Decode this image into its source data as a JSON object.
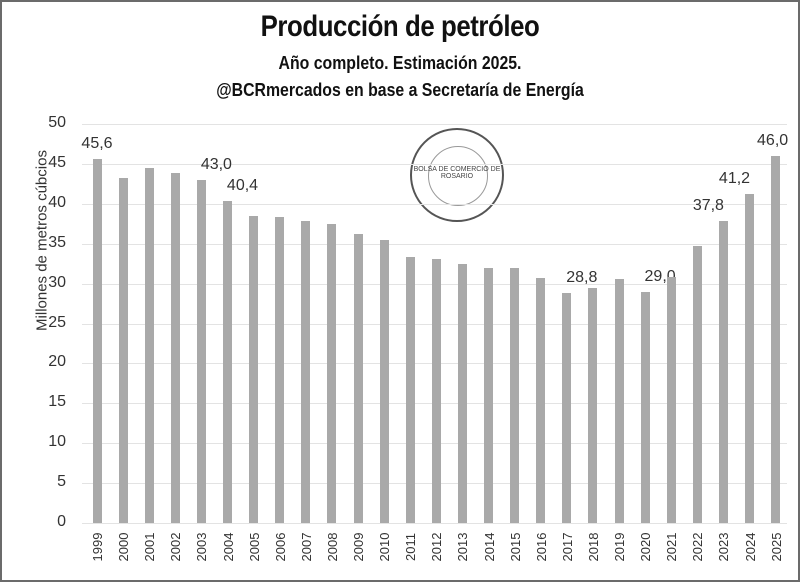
{
  "header": {
    "title": "Producción de petróleo",
    "subtitle1": "Año completo. Estimación 2025.",
    "subtitle2": "@BCRmercados en base a Secretaría de Energía"
  },
  "watermark": {
    "text": "BOLSA DE COMERCIO DE ROSARIO"
  },
  "colors": {
    "bar": "#a9a9a9",
    "grid": "#e3e3e3",
    "text": "#333333",
    "frame": "#6b6b6b"
  },
  "chart_data": {
    "type": "bar",
    "title": "Producción de petróleo",
    "subtitle": "Año completo. Estimación 2025. @BCRmercados en base a Secretaría de Energía",
    "xlabel": "",
    "ylabel": "Millones de metros cúbcios",
    "ylim": [
      0,
      50
    ],
    "yticks": [
      0,
      5,
      10,
      15,
      20,
      25,
      30,
      35,
      40,
      45,
      50
    ],
    "grid": true,
    "legend": null,
    "categories": [
      "1999",
      "2000",
      "2001",
      "2002",
      "2003",
      "2004",
      "2005",
      "2006",
      "2007",
      "2008",
      "2009",
      "2010",
      "2011",
      "2012",
      "2013",
      "2014",
      "2015",
      "2016",
      "2017",
      "2018",
      "2019",
      "2020",
      "2021",
      "2022",
      "2023",
      "2024",
      "2025"
    ],
    "values": [
      45.6,
      43.2,
      44.5,
      43.9,
      43.0,
      40.4,
      38.5,
      38.3,
      37.9,
      37.5,
      36.2,
      35.5,
      33.3,
      33.1,
      32.5,
      32.0,
      32.0,
      30.7,
      28.8,
      29.4,
      30.6,
      29.0,
      30.8,
      34.7,
      37.8,
      41.2,
      46.0
    ],
    "data_labels": {
      "1999": "45,6",
      "2003": "43,0",
      "2004": "40,4",
      "2017": "28,8",
      "2020": "29,0",
      "2023": "37,8",
      "2024": "41,2",
      "2025": "46,0"
    }
  }
}
